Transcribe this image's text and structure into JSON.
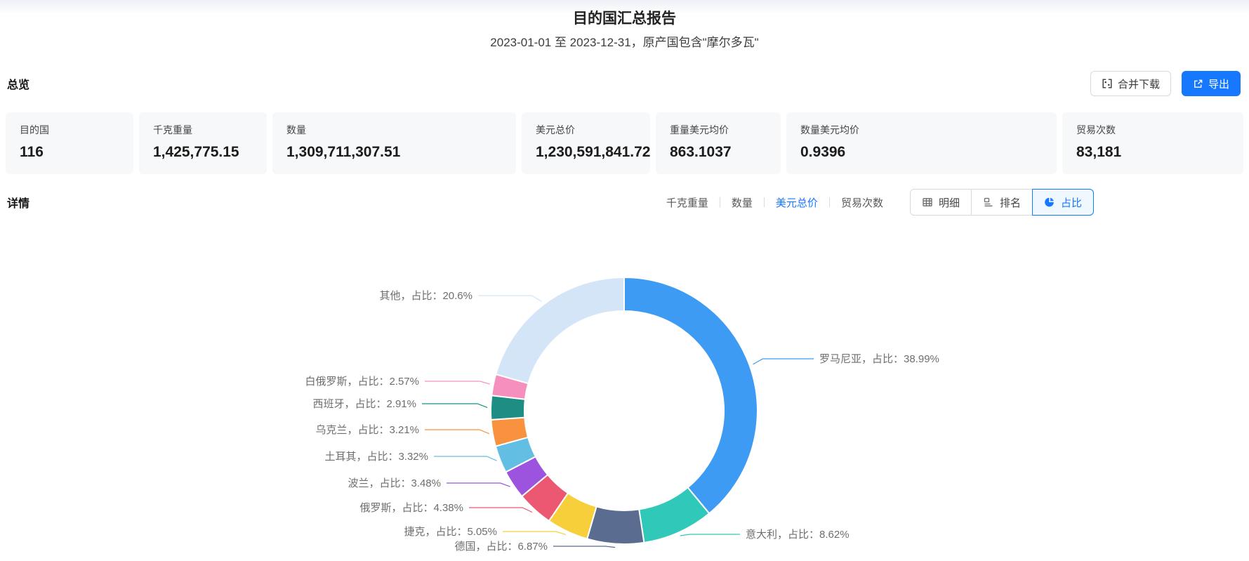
{
  "header": {
    "title": "目的国汇总报告",
    "subtitle": "2023-01-01 至 2023-12-31，原产国包含\"摩尔多瓦\""
  },
  "colors": {
    "primary": "#1677ff"
  },
  "overview": {
    "heading": "总览",
    "merge_download_label": "合并下载",
    "export_label": "导出",
    "cards": [
      {
        "label": "目的国",
        "value": "116"
      },
      {
        "label": "千克重量",
        "value": "1,425,775.15"
      },
      {
        "label": "数量",
        "value": "1,309,711,307.51"
      },
      {
        "label": "美元总价",
        "value": "1,230,591,841.72"
      },
      {
        "label": "重量美元均价",
        "value": "863.1037"
      },
      {
        "label": "数量美元均价",
        "value": "0.9396"
      },
      {
        "label": "贸易次数",
        "value": "83,181"
      }
    ]
  },
  "details": {
    "heading": "详情",
    "selected_metric": "美元总价",
    "selected_view": "占比",
    "metric_tabs": [
      {
        "label": "千克重量"
      },
      {
        "label": "数量"
      },
      {
        "label": "美元总价"
      },
      {
        "label": "贸易次数"
      }
    ],
    "view_buttons": [
      {
        "label": "明细"
      },
      {
        "label": "排名"
      },
      {
        "label": "占比"
      }
    ]
  },
  "chart_data": {
    "type": "pie",
    "subtype": "donut",
    "title": "",
    "legend_position": "none",
    "start_position": "top",
    "direction": "clockwise",
    "label_connector": "，占比：",
    "unit": "%",
    "segments": [
      {
        "name": "罗马尼亚",
        "pct": "38.99",
        "color": "#3E9BF4"
      },
      {
        "name": "意大利",
        "pct": "8.62",
        "color": "#30C9B9"
      },
      {
        "name": "德国",
        "pct": "6.87",
        "color": "#5A6C8F"
      },
      {
        "name": "捷克",
        "pct": "5.05",
        "color": "#F7CF3B"
      },
      {
        "name": "俄罗斯",
        "pct": "4.38",
        "color": "#EC5871"
      },
      {
        "name": "波兰",
        "pct": "3.48",
        "color": "#9C53DE"
      },
      {
        "name": "土耳其",
        "pct": "3.32",
        "color": "#63BEE4"
      },
      {
        "name": "乌克兰",
        "pct": "3.21",
        "color": "#F9923E"
      },
      {
        "name": "西班牙",
        "pct": "2.91",
        "color": "#1E8E84"
      },
      {
        "name": "白俄罗斯",
        "pct": "2.57",
        "color": "#F78FBE"
      },
      {
        "name": "其他",
        "pct": "20.6",
        "color": "#D4E5F8"
      }
    ]
  }
}
